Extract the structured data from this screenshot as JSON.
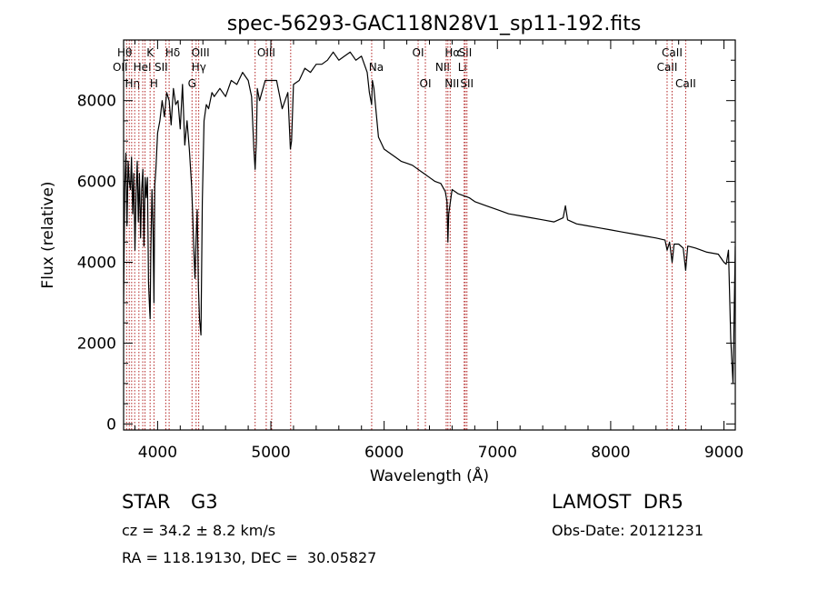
{
  "chart_data": {
    "type": "line",
    "title": "spec-56293-GAC118N28V1_sp11-192.fits",
    "xlabel": "Wavelength (Å)",
    "ylabel": "Flux (relative)",
    "xlim": [
      3700,
      9100
    ],
    "ylim": [
      -150,
      9500
    ],
    "xticks": [
      4000,
      5000,
      6000,
      7000,
      8000,
      9000
    ],
    "yticks": [
      0,
      2000,
      4000,
      6000,
      8000
    ],
    "grid": false,
    "line_color": "#000000",
    "marker_color": "#b22222",
    "spectrum": {
      "x": [
        3700,
        3710,
        3720,
        3730,
        3740,
        3750,
        3760,
        3770,
        3780,
        3790,
        3800,
        3810,
        3820,
        3830,
        3840,
        3850,
        3860,
        3870,
        3880,
        3890,
        3900,
        3910,
        3920,
        3930,
        3934,
        3940,
        3950,
        3960,
        3968,
        3975,
        3985,
        4000,
        4020,
        4040,
        4060,
        4080,
        4102,
        4120,
        4140,
        4160,
        4180,
        4200,
        4220,
        4240,
        4260,
        4280,
        4300,
        4310,
        4320,
        4330,
        4340,
        4350,
        4360,
        4370,
        4383,
        4395,
        4410,
        4430,
        4450,
        4480,
        4500,
        4550,
        4600,
        4650,
        4700,
        4750,
        4800,
        4830,
        4850,
        4861,
        4872,
        4880,
        4900,
        4950,
        5000,
        5050,
        5100,
        5150,
        5172,
        5183,
        5200,
        5250,
        5300,
        5350,
        5400,
        5450,
        5500,
        5550,
        5600,
        5650,
        5700,
        5750,
        5800,
        5850,
        5870,
        5890,
        5896,
        5910,
        5950,
        6000,
        6050,
        6100,
        6150,
        6200,
        6250,
        6300,
        6350,
        6400,
        6450,
        6500,
        6540,
        6555,
        6563,
        6570,
        6600,
        6650,
        6700,
        6750,
        6800,
        6900,
        7000,
        7100,
        7200,
        7300,
        7400,
        7500,
        7580,
        7600,
        7620,
        7700,
        7800,
        7900,
        8000,
        8100,
        8200,
        8300,
        8400,
        8480,
        8498,
        8520,
        8542,
        8560,
        8600,
        8640,
        8662,
        8680,
        8750,
        8850,
        8950,
        9000,
        9020,
        9040,
        9060,
        9080,
        9100
      ],
      "y": [
        3000,
        5800,
        6700,
        4900,
        6500,
        6000,
        5800,
        6600,
        5200,
        6200,
        4300,
        5700,
        6500,
        5000,
        6200,
        4600,
        5800,
        6300,
        4400,
        6100,
        5600,
        6100,
        3500,
        2800,
        2600,
        4200,
        5800,
        4800,
        3000,
        5900,
        6300,
        7200,
        7500,
        8000,
        7600,
        8200,
        8000,
        7400,
        8300,
        7900,
        8000,
        7300,
        8400,
        6900,
        7500,
        6800,
        5900,
        5200,
        4300,
        3600,
        4600,
        5300,
        3400,
        2600,
        2200,
        5500,
        7500,
        7900,
        7800,
        8200,
        8100,
        8300,
        8100,
        8500,
        8400,
        8700,
        8500,
        8100,
        6800,
        6300,
        7000,
        8300,
        8000,
        8500,
        8500,
        8500,
        7800,
        8200,
        6800,
        7000,
        8400,
        8500,
        8800,
        8700,
        8900,
        8900,
        9000,
        9200,
        9000,
        9100,
        9200,
        9000,
        9100,
        8700,
        8200,
        7900,
        8500,
        8300,
        7100,
        6800,
        6700,
        6600,
        6500,
        6450,
        6400,
        6300,
        6200,
        6100,
        6000,
        5950,
        5750,
        5500,
        4500,
        5200,
        5800,
        5700,
        5650,
        5600,
        5500,
        5400,
        5300,
        5200,
        5150,
        5100,
        5050,
        5000,
        5100,
        5400,
        5050,
        4950,
        4900,
        4850,
        4800,
        4750,
        4700,
        4650,
        4600,
        4550,
        4300,
        4500,
        4000,
        4450,
        4450,
        4350,
        3800,
        4400,
        4350,
        4250,
        4200,
        4000,
        3950,
        4300,
        2100,
        1000,
        4400
      ]
    },
    "lines": [
      {
        "wave": 3726,
        "label": "OII",
        "row": 2,
        "dx": -7
      },
      {
        "wave": 3750,
        "label": "Hθ",
        "row": 1,
        "dx": -5
      },
      {
        "wave": 3771,
        "label": "Hη",
        "row": 3,
        "dx": 1
      },
      {
        "wave": 3798,
        "label": "",
        "row": 0,
        "dx": 0
      },
      {
        "wave": 3835,
        "label": "",
        "row": 0,
        "dx": 0
      },
      {
        "wave": 3869,
        "label": "",
        "row": 0,
        "dx": 0
      },
      {
        "wave": 3889,
        "label": "HeI",
        "row": 2,
        "dx": -3
      },
      {
        "wave": 3934,
        "label": "K",
        "row": 1,
        "dx": 0
      },
      {
        "wave": 3968,
        "label": "H",
        "row": 3,
        "dx": 0
      },
      {
        "wave": 4072,
        "label": "SII",
        "row": 2,
        "dx": -5
      },
      {
        "wave": 4102,
        "label": "Hδ",
        "row": 1,
        "dx": 4
      },
      {
        "wave": 4304,
        "label": "G",
        "row": 3,
        "dx": 0
      },
      {
        "wave": 4340,
        "label": "Hγ",
        "row": 2,
        "dx": 3
      },
      {
        "wave": 4363,
        "label": "OIII",
        "row": 1,
        "dx": 2
      },
      {
        "wave": 4861,
        "label": "",
        "row": 0,
        "dx": 0
      },
      {
        "wave": 4959,
        "label": "OIII",
        "row": 1,
        "dx": 0
      },
      {
        "wave": 5007,
        "label": "",
        "row": 0,
        "dx": 0
      },
      {
        "wave": 5175,
        "label": "",
        "row": 0,
        "dx": 0
      },
      {
        "wave": 5890,
        "label": "Na",
        "row": 2,
        "dx": 5
      },
      {
        "wave": 6300,
        "label": "OI",
        "row": 1,
        "dx": 0
      },
      {
        "wave": 6364,
        "label": "OI",
        "row": 3,
        "dx": 0
      },
      {
        "wave": 6548,
        "label": "NII",
        "row": 2,
        "dx": -4
      },
      {
        "wave": 6563,
        "label": "Hα",
        "row": 1,
        "dx": 5
      },
      {
        "wave": 6583,
        "label": "NII",
        "row": 3,
        "dx": 2
      },
      {
        "wave": 6707,
        "label": "Li",
        "row": 2,
        "dx": -2
      },
      {
        "wave": 6716,
        "label": "SII",
        "row": 1,
        "dx": 0
      },
      {
        "wave": 6731,
        "label": "SII",
        "row": 3,
        "dx": 0
      },
      {
        "wave": 8498,
        "label": "CaII",
        "row": 2,
        "dx": 0
      },
      {
        "wave": 8542,
        "label": "CaII",
        "row": 1,
        "dx": 0
      },
      {
        "wave": 8662,
        "label": "CaII",
        "row": 3,
        "dx": 0
      }
    ]
  },
  "info": {
    "class": "STAR",
    "subclass": "G3",
    "cz": "cz = 34.2 ± 8.2 km/s",
    "coords": "RA = 118.19130, DEC =  30.05827",
    "survey": "LAMOST  DR5",
    "obs_date": "Obs-Date: 20121231"
  }
}
